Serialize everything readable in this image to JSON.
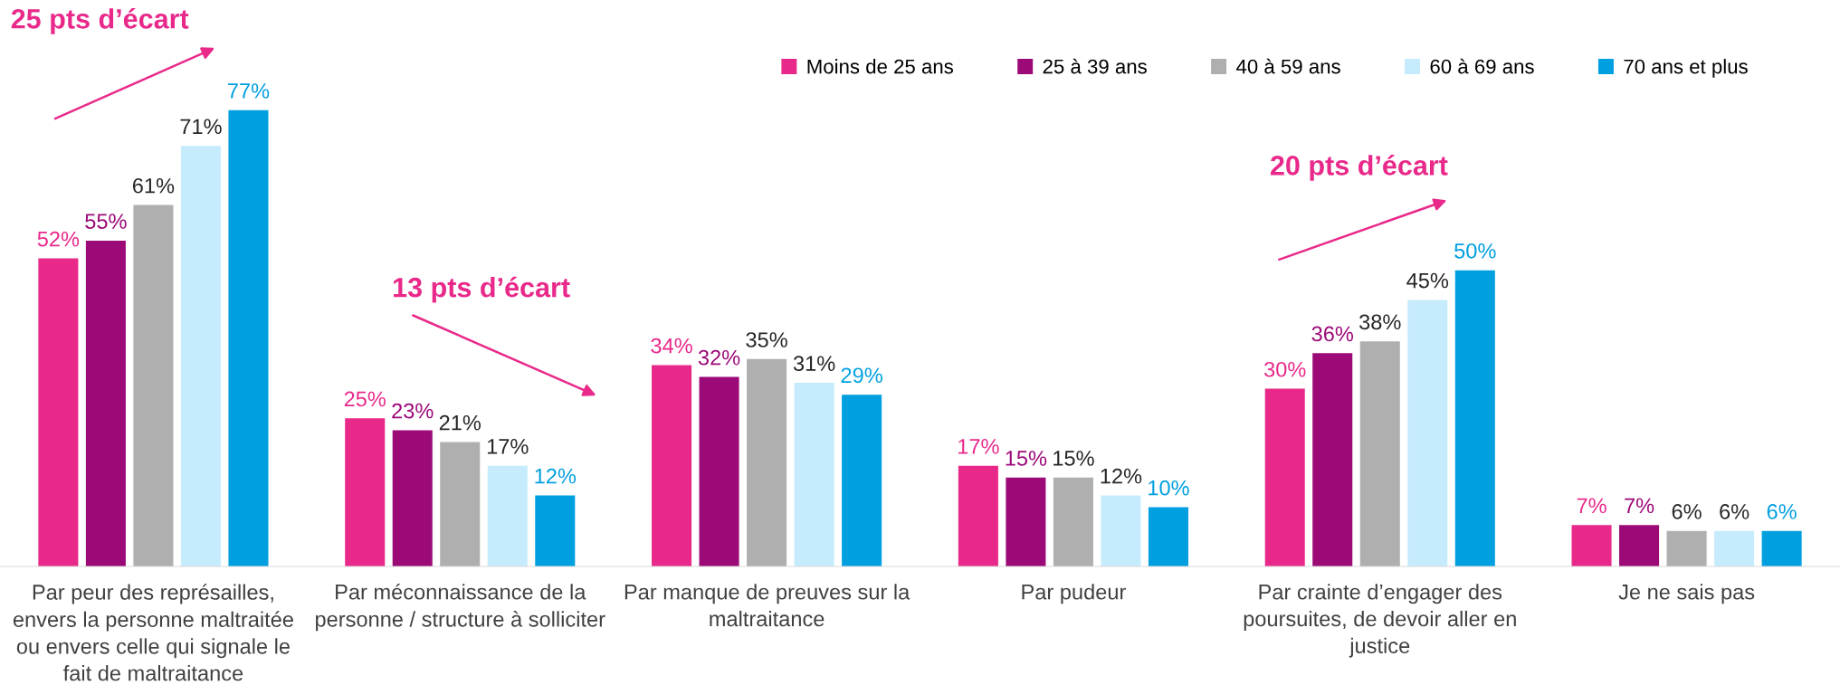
{
  "chart_data": {
    "type": "bar",
    "categories": [
      "Par peur des représailles, envers la personne maltraitée ou envers celle qui signale le fait de maltraitance",
      "Par méconnaissance de la personne / structure à solliciter",
      "Par manque de preuves sur la maltraitance",
      "Par pudeur",
      "Par crainte d’engager des poursuites, de devoir aller en justice",
      "Je ne sais pas"
    ],
    "series": [
      {
        "name": "Moins de 25 ans",
        "color": "#e9298a",
        "values": [
          52,
          25,
          34,
          17,
          30,
          7
        ],
        "value_labels": [
          "52%",
          "25%",
          "34%",
          "17%",
          "30%",
          "7%"
        ]
      },
      {
        "name": "25 à 39 ans",
        "color": "#9c0a78",
        "values": [
          55,
          23,
          32,
          15,
          36,
          7
        ],
        "value_labels": [
          "55%",
          "23%",
          "32%",
          "15%",
          "36%",
          "7%"
        ]
      },
      {
        "name": "40 à 59 ans",
        "color": "#b0afb0",
        "values": [
          61,
          21,
          35,
          15,
          38,
          6
        ],
        "value_labels": [
          "61%",
          "21%",
          "35%",
          "15%",
          "38%",
          "6%"
        ]
      },
      {
        "name": "60 à 69 ans",
        "color": "#c6ebfc",
        "values": [
          71,
          17,
          31,
          12,
          45,
          6
        ],
        "value_labels": [
          "71%",
          "17%",
          "31%",
          "12%",
          "45%",
          "6%"
        ]
      },
      {
        "name": "70 ans et plus",
        "color": "#009fe0",
        "values": [
          77,
          12,
          29,
          10,
          50,
          6
        ],
        "value_labels": [
          "77%",
          "12%",
          "29%",
          "10%",
          "50%",
          "6%"
        ]
      }
    ],
    "legend": "top right",
    "grid": false,
    "annotations": [
      "25 pts d’écart",
      "13 pts d’écart",
      "20 pts d’écart"
    ]
  }
}
